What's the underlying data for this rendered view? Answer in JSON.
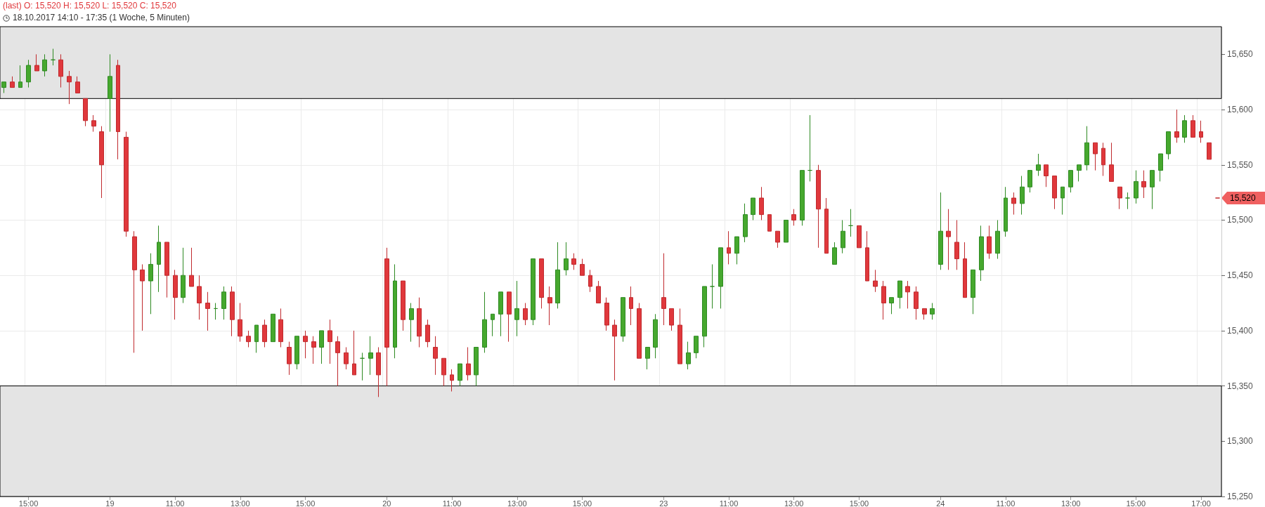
{
  "chart_data": {
    "type": "candlestick",
    "title": "(last) O: 15,520 H: 15,520 L: 15,520 C: 15,520",
    "subtitle": "18.10.2017 14:10 - 17:35   (1 Woche, 5 Minuten)",
    "categories": [
      null,
      null,
      null,
      "15:00",
      null,
      null,
      null,
      null,
      null,
      null,
      null,
      null,
      null,
      "19",
      null,
      null,
      null,
      null,
      null,
      null,
      null,
      "11:00",
      null,
      null,
      null,
      null,
      null,
      null,
      null,
      "13:00",
      null,
      null,
      null,
      null,
      null,
      null,
      null,
      "15:00",
      null,
      null,
      null,
      null,
      null,
      null,
      null,
      null,
      null,
      "20",
      null,
      null,
      null,
      null,
      null,
      null,
      null,
      "11:00",
      null,
      null,
      null,
      null,
      null,
      null,
      null,
      "13:00",
      null,
      null,
      null,
      null,
      null,
      null,
      null,
      "15:00",
      null,
      null,
      null,
      null,
      null,
      null,
      null,
      null,
      null,
      "23",
      null,
      null,
      null,
      null,
      null,
      null,
      null,
      "11:00",
      null,
      null,
      null,
      null,
      null,
      null,
      null,
      "13:00",
      null,
      null,
      null,
      null,
      null,
      null,
      null,
      "15:00",
      null,
      null,
      null,
      null,
      null,
      null,
      null,
      null,
      null,
      "24",
      null,
      null,
      null,
      null,
      null,
      null,
      null,
      "11:00",
      null,
      null,
      null,
      null,
      null,
      null,
      null,
      "13:00",
      null,
      null,
      null,
      null,
      null,
      null,
      null,
      "15:00",
      null,
      null,
      null,
      null,
      null,
      null,
      null,
      "17:00",
      null,
      null
    ],
    "ohlc": [
      [
        15620,
        15625,
        15615,
        15625
      ],
      [
        15625,
        15630,
        15620,
        15620
      ],
      [
        15620,
        15640,
        15620,
        15625
      ],
      [
        15625,
        15645,
        15620,
        15640
      ],
      [
        15640,
        15650,
        15635,
        15635
      ],
      [
        15635,
        15650,
        15630,
        15645
      ],
      [
        15645,
        15655,
        15640,
        15645
      ],
      [
        15645,
        15650,
        15620,
        15630
      ],
      [
        15630,
        15635,
        15605,
        15625
      ],
      [
        15625,
        15630,
        15615,
        15615
      ],
      [
        15610,
        15610,
        15585,
        15590
      ],
      [
        15590,
        15595,
        15580,
        15585
      ],
      [
        15580,
        15585,
        15520,
        15550
      ],
      [
        15610,
        15650,
        15580,
        15630
      ],
      [
        15640,
        15645,
        15555,
        15580
      ],
      [
        15575,
        15580,
        15485,
        15490
      ],
      [
        15485,
        15490,
        15380,
        15455
      ],
      [
        15455,
        15460,
        15400,
        15445
      ],
      [
        15445,
        15470,
        15415,
        15460
      ],
      [
        15460,
        15495,
        15435,
        15480
      ],
      [
        15480,
        15480,
        15430,
        15450
      ],
      [
        15450,
        15455,
        15410,
        15430
      ],
      [
        15430,
        15475,
        15425,
        15450
      ],
      [
        15450,
        15475,
        15440,
        15440
      ],
      [
        15440,
        15450,
        15410,
        15425
      ],
      [
        15425,
        15435,
        15400,
        15420
      ],
      [
        15420,
        15425,
        15410,
        15420
      ],
      [
        15420,
        15440,
        15410,
        15435
      ],
      [
        15435,
        15440,
        15395,
        15410
      ],
      [
        15410,
        15425,
        15390,
        15395
      ],
      [
        15395,
        15400,
        15385,
        15390
      ],
      [
        15390,
        15405,
        15380,
        15405
      ],
      [
        15405,
        15410,
        15385,
        15390
      ],
      [
        15390,
        15415,
        15390,
        15415
      ],
      [
        15410,
        15420,
        15385,
        15390
      ],
      [
        15385,
        15390,
        15360,
        15370
      ],
      [
        15370,
        15395,
        15365,
        15395
      ],
      [
        15395,
        15400,
        15375,
        15390
      ],
      [
        15390,
        15395,
        15370,
        15385
      ],
      [
        15385,
        15400,
        15370,
        15400
      ],
      [
        15400,
        15410,
        15370,
        15390
      ],
      [
        15390,
        15395,
        15350,
        15380
      ],
      [
        15380,
        15385,
        15365,
        15370
      ],
      [
        15370,
        15400,
        15360,
        15360
      ],
      [
        15375,
        15380,
        15355,
        15375
      ],
      [
        15375,
        15395,
        15360,
        15380
      ],
      [
        15380,
        15385,
        15340,
        15360
      ],
      [
        15465,
        15475,
        15350,
        15385
      ],
      [
        15385,
        15460,
        15375,
        15445
      ],
      [
        15445,
        15445,
        15400,
        15410
      ],
      [
        15410,
        15425,
        15390,
        15420
      ],
      [
        15420,
        15430,
        15385,
        15395
      ],
      [
        15405,
        15410,
        15385,
        15390
      ],
      [
        15385,
        15395,
        15360,
        15375
      ],
      [
        15375,
        15375,
        15350,
        15360
      ],
      [
        15360,
        15365,
        15345,
        15355
      ],
      [
        15355,
        15370,
        15350,
        15370
      ],
      [
        15370,
        15385,
        15355,
        15360
      ],
      [
        15360,
        15385,
        15350,
        15385
      ],
      [
        15385,
        15435,
        15380,
        15410
      ],
      [
        15410,
        15415,
        15395,
        15415
      ],
      [
        15415,
        15435,
        15395,
        15435
      ],
      [
        15435,
        15435,
        15390,
        15415
      ],
      [
        15410,
        15445,
        15395,
        15420
      ],
      [
        15420,
        15425,
        15405,
        15410
      ],
      [
        15410,
        15465,
        15405,
        15465
      ],
      [
        15465,
        15465,
        15420,
        15430
      ],
      [
        15430,
        15440,
        15405,
        15425
      ],
      [
        15425,
        15480,
        15420,
        15455
      ],
      [
        15455,
        15480,
        15450,
        15465
      ],
      [
        15465,
        15470,
        15455,
        15460
      ],
      [
        15460,
        15465,
        15450,
        15450
      ],
      [
        15450,
        15455,
        15435,
        15440
      ],
      [
        15440,
        15445,
        15425,
        15425
      ],
      [
        15425,
        15430,
        15400,
        15405
      ],
      [
        15405,
        15410,
        15355,
        15395
      ],
      [
        15395,
        15430,
        15390,
        15430
      ],
      [
        15430,
        15440,
        15405,
        15420
      ],
      [
        15420,
        15425,
        15375,
        15375
      ],
      [
        15375,
        15385,
        15365,
        15385
      ],
      [
        15385,
        15415,
        15375,
        15410
      ],
      [
        15430,
        15470,
        15405,
        15420
      ],
      [
        15420,
        15420,
        15400,
        15405
      ],
      [
        15405,
        15420,
        15370,
        15370
      ],
      [
        15370,
        15390,
        15365,
        15380
      ],
      [
        15380,
        15395,
        15375,
        15395
      ],
      [
        15395,
        15440,
        15385,
        15440
      ],
      [
        15440,
        15460,
        15420,
        15440
      ],
      [
        15440,
        15475,
        15420,
        15475
      ],
      [
        15475,
        15490,
        15460,
        15470
      ],
      [
        15470,
        15485,
        15460,
        15485
      ],
      [
        15485,
        15515,
        15480,
        15505
      ],
      [
        15505,
        15520,
        15500,
        15520
      ],
      [
        15520,
        15530,
        15500,
        15505
      ],
      [
        15505,
        15505,
        15490,
        15490
      ],
      [
        15490,
        15490,
        15475,
        15480
      ],
      [
        15480,
        15500,
        15480,
        15500
      ],
      [
        15505,
        15510,
        15495,
        15500
      ],
      [
        15500,
        15545,
        15495,
        15545
      ],
      [
        15545,
        15595,
        15535,
        15545
      ],
      [
        15545,
        15550,
        15475,
        15510
      ],
      [
        15510,
        15520,
        15470,
        15470
      ],
      [
        15460,
        15480,
        15460,
        15475
      ],
      [
        15475,
        15500,
        15470,
        15490
      ],
      [
        15495,
        15510,
        15485,
        15495
      ],
      [
        15495,
        15495,
        15475,
        15475
      ],
      [
        15475,
        15490,
        15445,
        15445
      ],
      [
        15445,
        15455,
        15435,
        15440
      ],
      [
        15440,
        15445,
        15410,
        15425
      ],
      [
        15425,
        15430,
        15415,
        15430
      ],
      [
        15430,
        15445,
        15420,
        15445
      ],
      [
        15440,
        15445,
        15420,
        15435
      ],
      [
        15435,
        15440,
        15410,
        15420
      ],
      [
        15420,
        15420,
        15410,
        15415
      ],
      [
        15415,
        15425,
        15410,
        15420
      ],
      [
        15460,
        15525,
        15455,
        15490
      ],
      [
        15490,
        15510,
        15455,
        15485
      ],
      [
        15480,
        15500,
        15455,
        15465
      ],
      [
        15465,
        15480,
        15430,
        15430
      ],
      [
        15430,
        15455,
        15415,
        15455
      ],
      [
        15455,
        15495,
        15445,
        15485
      ],
      [
        15485,
        15495,
        15465,
        15470
      ],
      [
        15470,
        15500,
        15465,
        15490
      ],
      [
        15490,
        15530,
        15485,
        15520
      ],
      [
        15520,
        15525,
        15505,
        15515
      ],
      [
        15515,
        15540,
        15505,
        15530
      ],
      [
        15530,
        15545,
        15525,
        15545
      ],
      [
        15545,
        15560,
        15540,
        15550
      ],
      [
        15550,
        15550,
        15530,
        15540
      ],
      [
        15540,
        15540,
        15510,
        15520
      ],
      [
        15520,
        15530,
        15505,
        15530
      ],
      [
        15530,
        15545,
        15525,
        15545
      ],
      [
        15545,
        15550,
        15535,
        15550
      ],
      [
        15550,
        15585,
        15545,
        15570
      ],
      [
        15570,
        15570,
        15545,
        15560
      ],
      [
        15565,
        15570,
        15540,
        15550
      ],
      [
        15550,
        15570,
        15535,
        15535
      ],
      [
        15530,
        15530,
        15510,
        15520
      ],
      [
        15520,
        15525,
        15510,
        15520
      ],
      [
        15520,
        15545,
        15515,
        15535
      ],
      [
        15535,
        15545,
        15520,
        15530
      ],
      [
        15530,
        15545,
        15510,
        15545
      ],
      [
        15545,
        15560,
        15535,
        15560
      ],
      [
        15560,
        15580,
        15555,
        15580
      ],
      [
        15580,
        15600,
        15570,
        15575
      ],
      [
        15575,
        15595,
        15570,
        15590
      ],
      [
        15590,
        15595,
        15575,
        15575
      ],
      [
        15580,
        15590,
        15570,
        15575
      ],
      [
        15570,
        15570,
        15555,
        15555
      ],
      [
        15520,
        15520,
        15520,
        15520
      ]
    ],
    "ylim": [
      15250,
      15675
    ],
    "yticks": [
      {
        "value": 15250,
        "label": "15,250"
      },
      {
        "value": 15300,
        "label": "15,300"
      },
      {
        "value": 15350,
        "label": "15,350"
      },
      {
        "value": 15400,
        "label": "15,400"
      },
      {
        "value": 15450,
        "label": "15,450"
      },
      {
        "value": 15500,
        "label": "15,500"
      },
      {
        "value": 15550,
        "label": "15,550"
      },
      {
        "value": 15600,
        "label": "15,600"
      },
      {
        "value": 15650,
        "label": "15,650"
      }
    ],
    "grid": true,
    "bands": [
      {
        "axis": "y",
        "from": 15250,
        "to": 15350,
        "color": "#e4e4e4"
      },
      {
        "axis": "y",
        "from": 15610,
        "to": 15675,
        "color": "#e4e4e4"
      }
    ],
    "annotations": [
      "15,520"
    ]
  }
}
